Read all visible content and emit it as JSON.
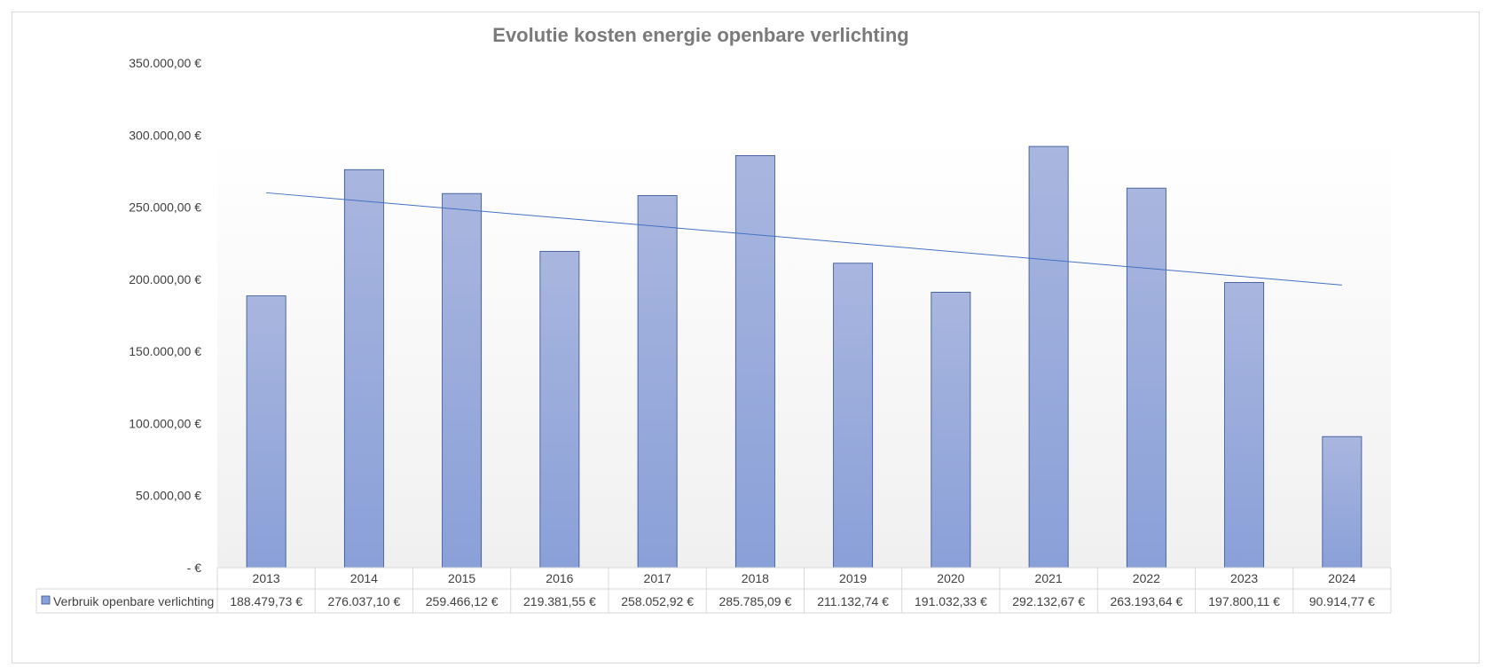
{
  "chart_data": {
    "type": "bar",
    "title": "Evolutie kosten energie openbare verlichting",
    "categories": [
      "2013",
      "2014",
      "2015",
      "2016",
      "2017",
      "2018",
      "2019",
      "2020",
      "2021",
      "2022",
      "2023",
      "2024"
    ],
    "series": [
      {
        "name": "Verbruik openbare verlichting",
        "values": [
          188479.73,
          276037.1,
          259466.12,
          219381.55,
          258052.92,
          285785.09,
          211132.74,
          191032.33,
          292132.67,
          263193.64,
          197800.11,
          90914.77
        ],
        "value_labels": [
          "188.479,73 €",
          "276.037,10 €",
          "259.466,12 €",
          "219.381,55 €",
          "258.052,92 €",
          "285.785,09 €",
          "211.132,74 €",
          "191.032,33 €",
          "292.132,67 €",
          "263.193,64 €",
          "197.800,11 €",
          "90.914,77 €"
        ]
      }
    ],
    "trendline": {
      "type": "linear",
      "start_value": 260000,
      "end_value": 196000
    },
    "ylim": [
      0,
      350000
    ],
    "yticks": [
      0,
      50000,
      100000,
      150000,
      200000,
      250000,
      300000,
      350000
    ],
    "ytick_labels": [
      "-  €",
      "50.000,00 €",
      "100.000,00 €",
      "150.000,00 €",
      "200.000,00 €",
      "250.000,00 €",
      "300.000,00 €",
      "350.000,00 €"
    ],
    "data_table": true,
    "legend": "in data table",
    "grid": false,
    "colors": {
      "bar_fill_top": "#a9b6df",
      "bar_fill_bottom": "#8aa0d8",
      "bar_stroke": "#2f4f8f",
      "trendline": "#4472c4"
    }
  }
}
